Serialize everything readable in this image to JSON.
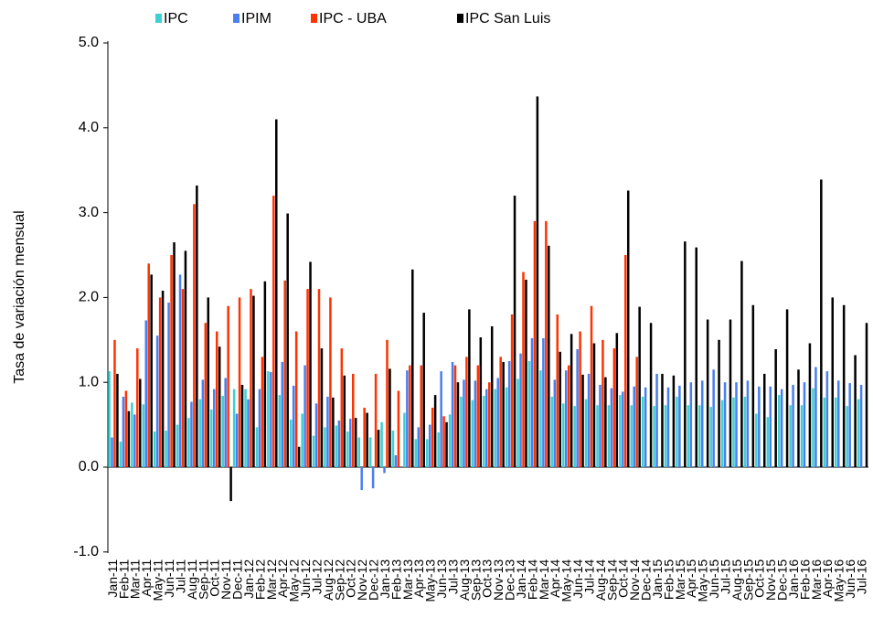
{
  "chart_data": {
    "type": "bar",
    "y_label": "Tasa de variación mensual",
    "categories": [
      "Jan-11",
      "Feb-11",
      "Mar-11",
      "Apr-11",
      "May-11",
      "Jun-11",
      "Jul-11",
      "Aug-11",
      "Sep-11",
      "Oct-11",
      "Nov-11",
      "Dec-11",
      "Jan-12",
      "Feb-12",
      "Mar-12",
      "Apr-12",
      "May-12",
      "Jun-12",
      "Jul-12",
      "Aug-12",
      "Sep-12",
      "Oct-12",
      "Nov-12",
      "Dec-12",
      "Jan-13",
      "Feb-13",
      "Mar-13",
      "Apr-13",
      "May-13",
      "Jun-13",
      "Jul-13",
      "Aug-13",
      "Sep-13",
      "Oct-13",
      "Nov-13",
      "Dec-13",
      "Jan-14",
      "Feb-14",
      "Mar-14",
      "Apr-14",
      "May-14",
      "Jun-14",
      "Jul-14",
      "Aug-14",
      "Sep-14",
      "Oct-14",
      "Nov-14",
      "Dec-14",
      "Jan-15",
      "Feb-15",
      "Mar-15",
      "Apr-15",
      "May-15",
      "Jun-15",
      "Jul-15",
      "Aug-15",
      "Sep-15",
      "Oct-15",
      "Nov-15",
      "Dec-15",
      "Jan-16",
      "Feb-16",
      "Mar-16",
      "Apr-16",
      "May-16",
      "Jun-16",
      "Jul-16"
    ],
    "series": [
      {
        "name": "IPC",
        "color": "#3ccfd4",
        "values": [
          1.13,
          0.3,
          0.76,
          0.74,
          0.42,
          0.43,
          0.5,
          0.58,
          0.8,
          0.68,
          0.84,
          0.92,
          0.92,
          0.47,
          1.13,
          0.85,
          0.56,
          0.63,
          0.37,
          0.47,
          0.49,
          0.42,
          0.35,
          0.35,
          0.53,
          0.43,
          0.64,
          0.33,
          0.33,
          0.41,
          0.62,
          0.83,
          0.79,
          0.84,
          0.92,
          0.94,
          1.04,
          1.25,
          1.14,
          0.83,
          0.75,
          0.72,
          0.8,
          0.73,
          0.73,
          0.85,
          0.73,
          0.83,
          0.72,
          0.73,
          0.83,
          0.73,
          0.73,
          0.71,
          0.79,
          0.82,
          0.83,
          0.63,
          0.59,
          0.85,
          0.73,
          0.73,
          0.93,
          0.82,
          0.82,
          0.72,
          0.8
        ]
      },
      {
        "name": "IPIM",
        "color": "#4a7ff0",
        "values": [
          0.35,
          0.83,
          0.62,
          1.73,
          1.55,
          1.94,
          2.27,
          0.77,
          1.03,
          0.92,
          1.05,
          0.63,
          0.8,
          0.92,
          1.12,
          1.24,
          0.96,
          1.2,
          0.75,
          0.83,
          0.55,
          0.57,
          -0.27,
          -0.25,
          -0.07,
          0.14,
          1.14,
          0.47,
          0.5,
          1.13,
          1.24,
          1.03,
          1.02,
          0.92,
          1.05,
          1.25,
          1.34,
          1.52,
          1.52,
          1.03,
          1.14,
          1.39,
          1.1,
          0.97,
          0.93,
          0.89,
          0.95,
          0.94,
          1.1,
          0.94,
          0.96,
          1.0,
          1.02,
          1.15,
          1.0,
          1.0,
          1.02,
          0.95,
          0.95,
          0.92,
          0.97,
          1.0,
          1.18,
          1.13,
          1.02,
          0.99,
          0.97
        ]
      },
      {
        "name": "IPC - UBA",
        "color": "#ff3300",
        "values": [
          1.5,
          0.9,
          1.4,
          2.4,
          2.0,
          2.5,
          2.1,
          3.1,
          1.7,
          1.6,
          1.9,
          2.0,
          2.1,
          1.3,
          3.2,
          2.2,
          1.6,
          2.1,
          2.1,
          2.0,
          1.4,
          1.1,
          0.7,
          1.1,
          1.5,
          0.9,
          1.2,
          1.2,
          0.7,
          0.6,
          1.2,
          1.3,
          1.2,
          1.0,
          1.3,
          1.8,
          2.3,
          2.9,
          2.9,
          1.8,
          1.2,
          1.6,
          1.9,
          1.5,
          1.4,
          2.5,
          1.3,
          null,
          null,
          null,
          null,
          null,
          null,
          null,
          null,
          null,
          null,
          null,
          null,
          null,
          null,
          null,
          null,
          null,
          null,
          null,
          null
        ]
      },
      {
        "name": "IPC San Luis",
        "color": "#000000",
        "values": [
          1.1,
          0.66,
          1.04,
          2.27,
          2.08,
          2.65,
          2.55,
          3.32,
          2.0,
          1.42,
          -0.4,
          0.97,
          2.02,
          2.19,
          4.1,
          2.99,
          0.24,
          2.42,
          1.4,
          0.82,
          1.08,
          0.58,
          0.64,
          0.44,
          1.16,
          null,
          2.33,
          1.82,
          0.85,
          0.53,
          1.0,
          1.86,
          1.53,
          1.66,
          1.24,
          3.2,
          2.21,
          4.37,
          2.61,
          1.36,
          1.57,
          1.09,
          1.46,
          1.06,
          1.58,
          3.26,
          1.89,
          1.7,
          1.1,
          1.08,
          2.66,
          2.59,
          1.74,
          1.5,
          1.74,
          2.43,
          1.91,
          1.1,
          1.39,
          1.86,
          1.15,
          1.46,
          3.39,
          2.0,
          1.91,
          1.32,
          1.7
        ]
      }
    ],
    "ylim": [
      -1,
      5
    ],
    "yticks": [
      {
        "value": -1,
        "label": "-1.0"
      },
      {
        "value": 0,
        "label": "0.0"
      },
      {
        "value": 1,
        "label": "1.0"
      },
      {
        "value": 2,
        "label": "2.0"
      },
      {
        "value": 3,
        "label": "3.0"
      },
      {
        "value": 4,
        "label": "4.0"
      },
      {
        "value": 5,
        "label": "5.0"
      }
    ],
    "legend": "top",
    "grid": false
  }
}
